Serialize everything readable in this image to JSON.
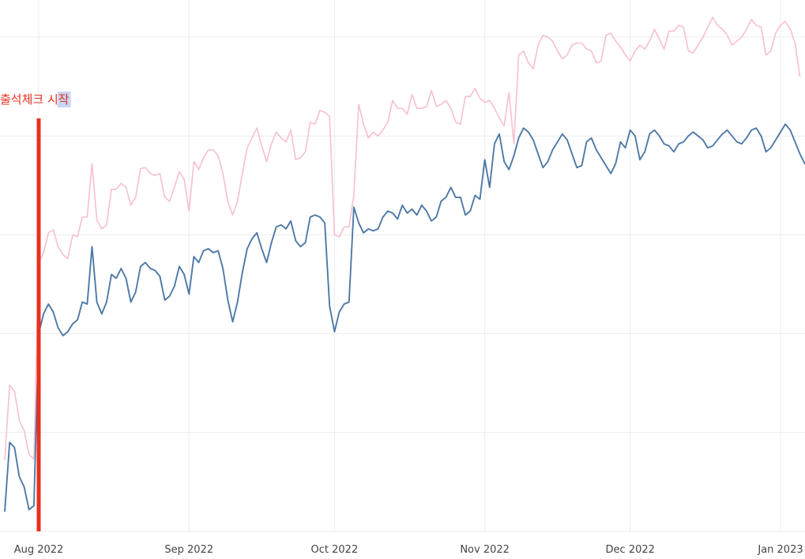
{
  "chart_data": {
    "type": "line",
    "title": "",
    "xlabel": "",
    "ylabel": "",
    "x_start": "2022-07-25",
    "x_ticks": [
      {
        "date": "2022-08-01",
        "label": "Aug 2022"
      },
      {
        "date": "2022-09-01",
        "label": "Sep 2022"
      },
      {
        "date": "2022-10-01",
        "label": "Oct 2022"
      },
      {
        "date": "2022-11-01",
        "label": "Nov 2022"
      },
      {
        "date": "2022-12-01",
        "label": "Dec 2022"
      },
      {
        "date": "2023-01-01",
        "label": "Jan 2023"
      }
    ],
    "y_grid": [
      0,
      1,
      2,
      3,
      4,
      5
    ],
    "ylim": [
      0,
      5.2
    ],
    "grid": true,
    "series": [
      {
        "color": "#f7bfcd",
        "values": [
          0.72,
          1.48,
          1.42,
          1.12,
          1.02,
          0.78,
          0.73,
          2.72,
          2.82,
          3.02,
          3.05,
          2.88,
          2.8,
          2.76,
          3.0,
          2.98,
          3.18,
          3.18,
          3.72,
          3.15,
          3.06,
          3.1,
          3.46,
          3.46,
          3.52,
          3.48,
          3.3,
          3.38,
          3.67,
          3.68,
          3.62,
          3.6,
          3.62,
          3.38,
          3.34,
          3.48,
          3.64,
          3.56,
          3.24,
          3.74,
          3.66,
          3.78,
          3.86,
          3.86,
          3.8,
          3.62,
          3.34,
          3.2,
          3.34,
          3.62,
          3.88,
          3.98,
          4.08,
          3.9,
          3.74,
          3.92,
          4.04,
          3.98,
          3.94,
          4.06,
          3.76,
          3.78,
          3.84,
          4.14,
          4.12,
          4.26,
          4.24,
          4.2,
          3.0,
          2.98,
          3.08,
          3.08,
          3.4,
          4.32,
          4.12,
          3.98,
          4.04,
          4.0,
          4.06,
          4.14,
          4.36,
          4.28,
          4.28,
          4.22,
          4.42,
          4.28,
          4.28,
          4.3,
          4.46,
          4.3,
          4.32,
          4.36,
          4.28,
          4.14,
          4.12,
          4.4,
          4.4,
          4.48,
          4.38,
          4.34,
          4.36,
          4.28,
          4.18,
          4.1,
          4.44,
          3.92,
          4.82,
          4.86,
          4.74,
          4.68,
          4.92,
          5.02,
          5.0,
          4.96,
          4.86,
          4.78,
          4.82,
          4.92,
          4.94,
          4.94,
          4.88,
          4.86,
          4.74,
          4.76,
          5.02,
          5.04,
          4.96,
          4.9,
          4.82,
          4.76,
          4.86,
          4.92,
          4.88,
          4.96,
          5.08,
          4.98,
          4.88,
          5.06,
          5.06,
          5.12,
          5.1,
          4.86,
          4.84,
          4.92,
          5.0,
          5.1,
          5.2,
          5.12,
          5.08,
          5.02,
          4.92,
          4.96,
          5.0,
          5.08,
          5.18,
          5.12,
          5.1,
          4.82,
          4.86,
          5.04,
          5.12,
          5.16,
          5.08,
          4.94,
          4.6
        ]
      },
      {
        "color": "#4e79a7",
        "values": [
          0.2,
          0.9,
          0.85,
          0.55,
          0.45,
          0.22,
          0.26,
          2.0,
          2.2,
          2.3,
          2.22,
          2.06,
          1.98,
          2.02,
          2.1,
          2.14,
          2.32,
          2.3,
          2.88,
          2.32,
          2.2,
          2.32,
          2.6,
          2.56,
          2.66,
          2.56,
          2.32,
          2.42,
          2.68,
          2.72,
          2.66,
          2.64,
          2.58,
          2.34,
          2.38,
          2.48,
          2.68,
          2.6,
          2.4,
          2.78,
          2.72,
          2.84,
          2.86,
          2.82,
          2.84,
          2.66,
          2.34,
          2.12,
          2.32,
          2.62,
          2.86,
          2.96,
          3.02,
          2.86,
          2.72,
          2.92,
          3.08,
          3.1,
          3.06,
          3.14,
          2.94,
          2.88,
          2.92,
          3.18,
          3.2,
          3.18,
          3.12,
          2.28,
          2.02,
          2.22,
          2.3,
          2.32,
          3.28,
          3.12,
          3.02,
          3.06,
          3.04,
          3.06,
          3.18,
          3.24,
          3.22,
          3.16,
          3.3,
          3.22,
          3.26,
          3.2,
          3.3,
          3.24,
          3.14,
          3.18,
          3.34,
          3.38,
          3.48,
          3.38,
          3.38,
          3.2,
          3.24,
          3.4,
          3.36,
          3.76,
          3.48,
          3.92,
          4.02,
          3.74,
          3.66,
          3.8,
          3.98,
          4.08,
          4.04,
          3.96,
          3.82,
          3.68,
          3.74,
          3.86,
          3.94,
          4.02,
          3.96,
          3.82,
          3.68,
          3.7,
          3.94,
          3.98,
          3.86,
          3.78,
          3.7,
          3.62,
          3.72,
          3.94,
          3.88,
          4.06,
          4.0,
          3.76,
          3.84,
          4.02,
          4.06,
          4.0,
          3.92,
          3.9,
          3.84,
          3.92,
          3.94,
          4.0,
          4.04,
          4.0,
          3.96,
          3.88,
          3.9,
          3.96,
          4.02,
          4.06,
          4.0,
          3.94,
          3.92,
          3.98,
          4.06,
          4.08,
          4.0,
          3.84,
          3.88,
          3.96,
          4.04,
          4.12,
          4.06,
          3.94,
          3.82,
          3.72,
          3.8,
          3.92,
          4.0,
          4.06,
          3.98,
          3.94,
          3.66
        ]
      }
    ],
    "annotations": [
      {
        "type": "vline",
        "date": "2022-08-01",
        "color": "#e8301f",
        "label": "출석체크 시작"
      }
    ]
  }
}
